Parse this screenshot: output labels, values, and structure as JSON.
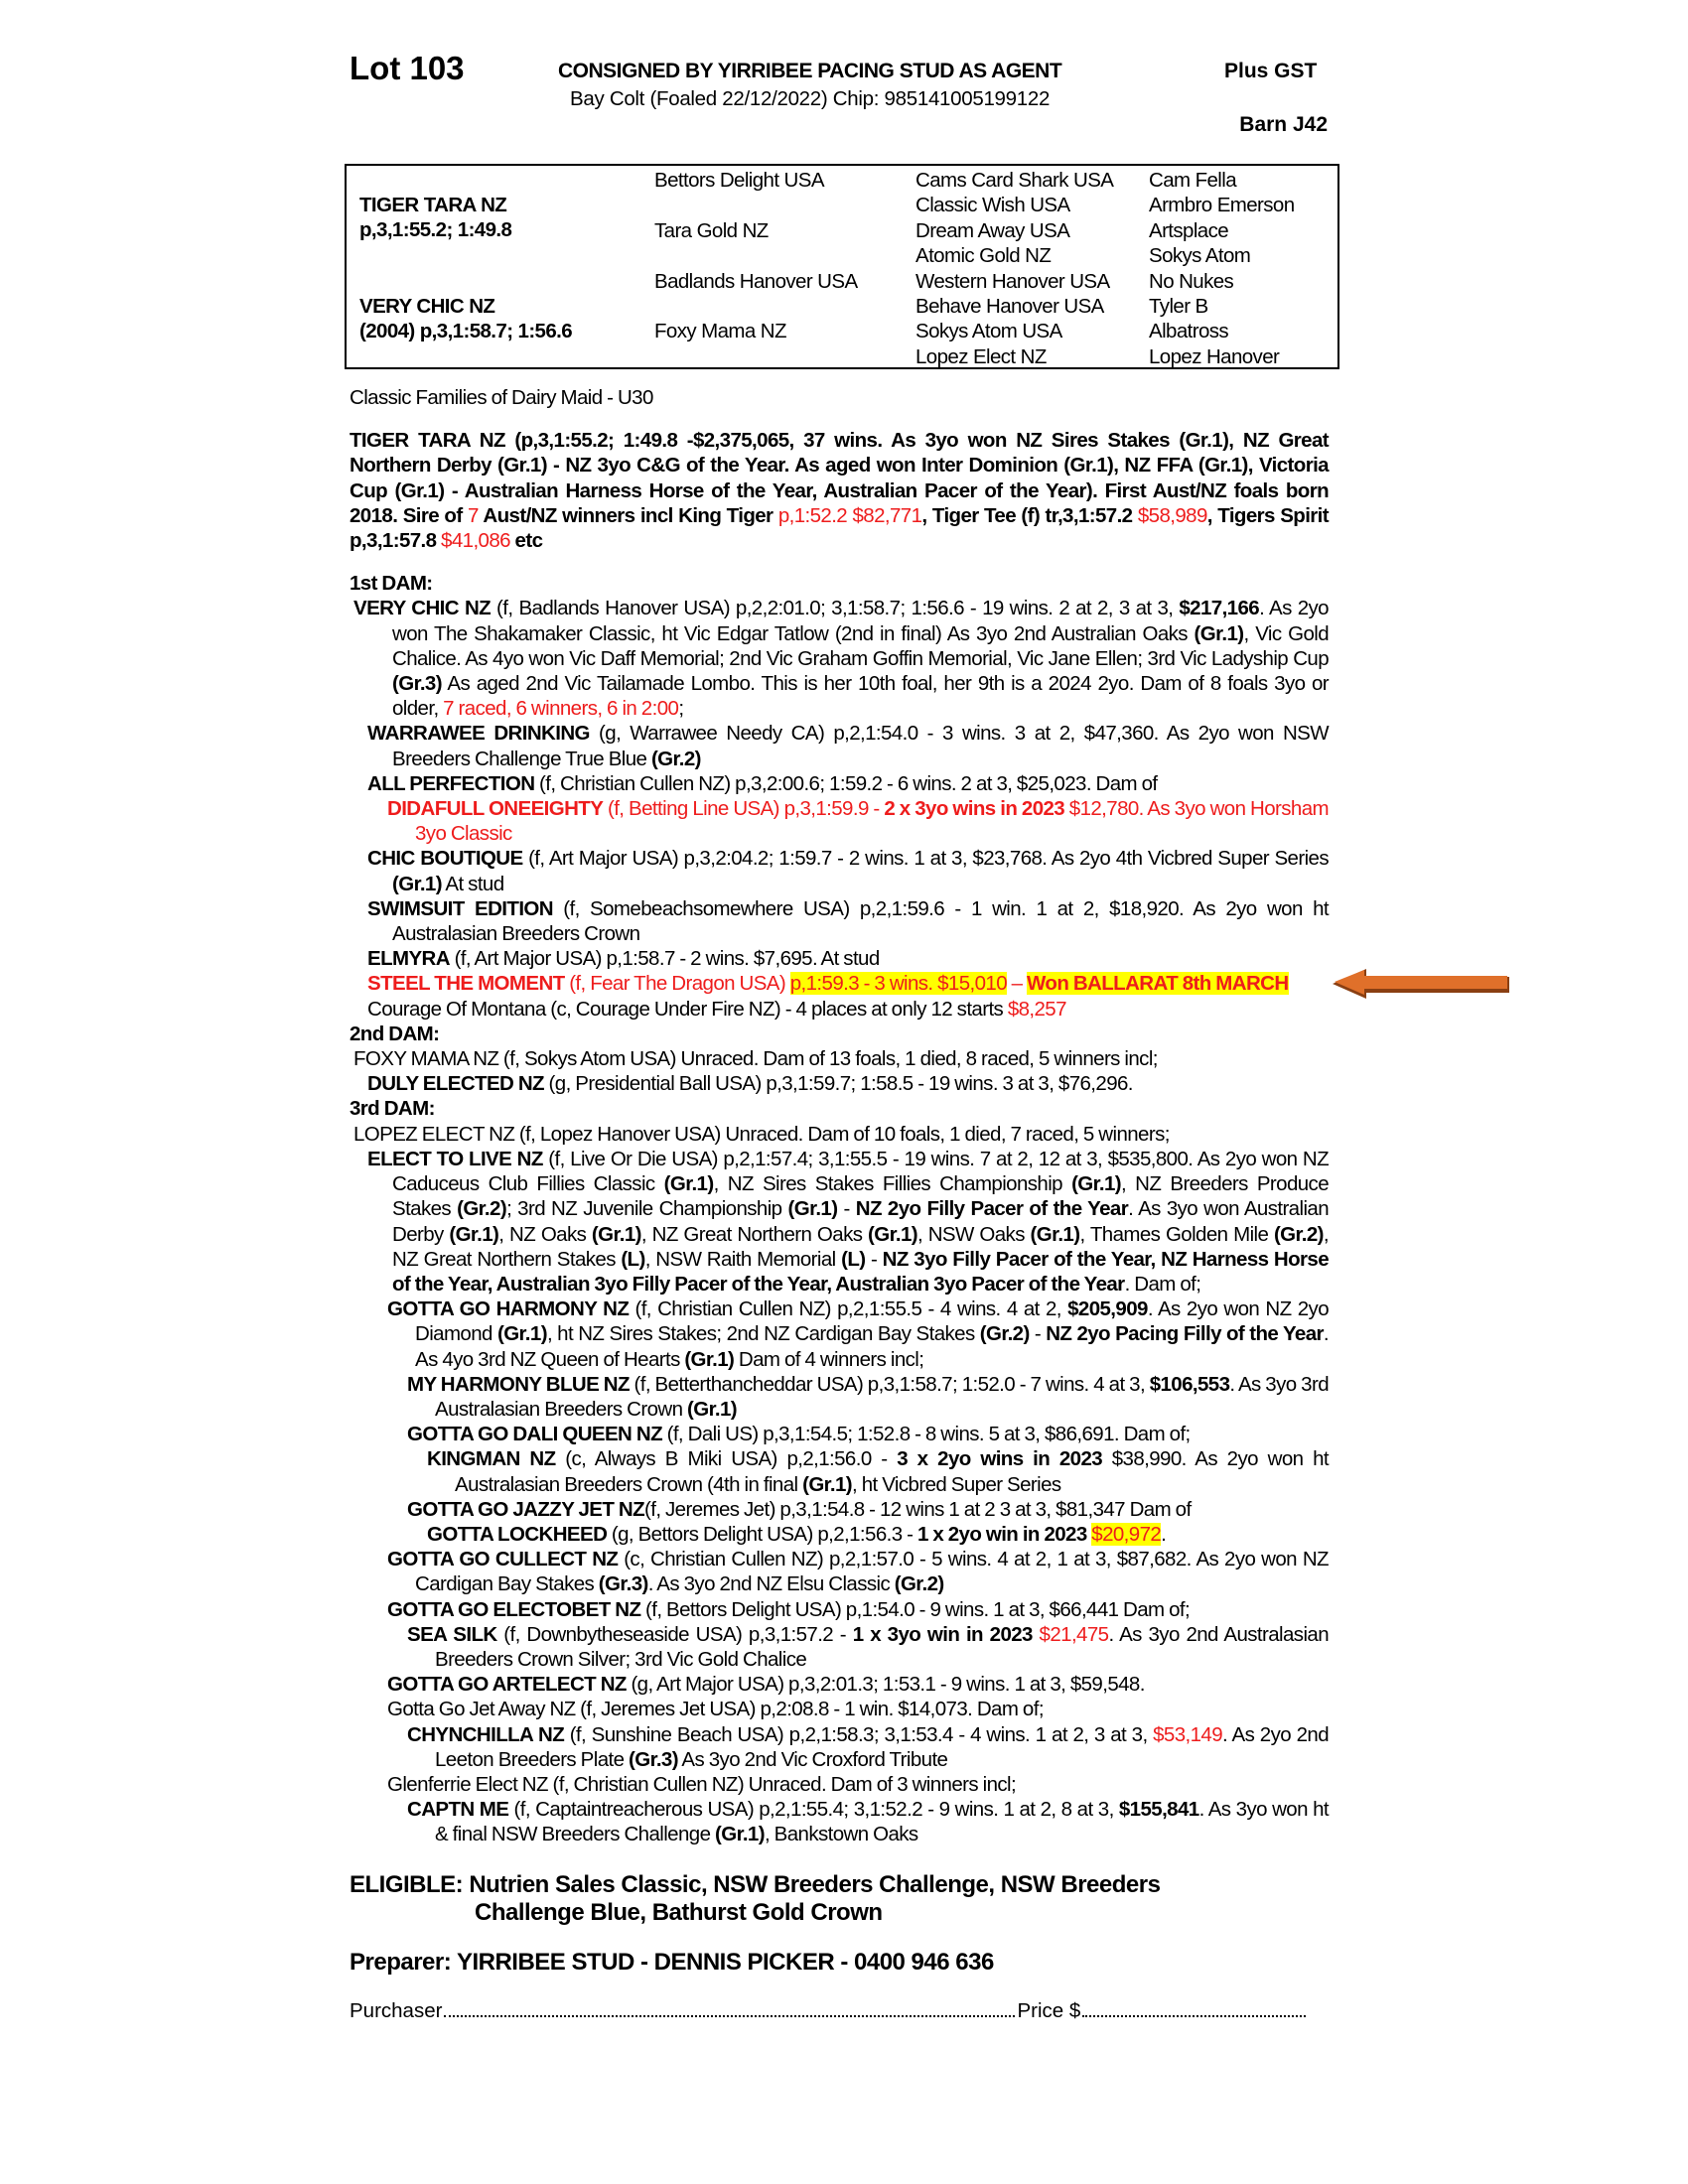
{
  "header": {
    "lot": "Lot 103",
    "consigned": "CONSIGNED BY YIRRIBEE PACING STUD AS AGENT",
    "subline": "Bay Colt (Foaled  22/12/2022) Chip: 985141005199122",
    "gst": "Plus GST",
    "barn": "Barn J42"
  },
  "pedigree": {
    "sire_name": "TIGER TARA NZ",
    "sire_record": "p,3,1:55.2; 1:49.8",
    "dam_name": "VERY CHIC NZ",
    "dam_record": "(2004) p,3,1:58.7; 1:56.6",
    "gen2": [
      "Bettors Delight USA",
      "Tara Gold NZ",
      "Badlands Hanover USA",
      "Foxy Mama NZ"
    ],
    "gen3": [
      "Cams Card Shark USA",
      "Classic Wish USA",
      "Dream Away USA",
      "Atomic Gold NZ",
      "Western Hanover USA",
      "Behave Hanover USA",
      "Sokys Atom USA",
      "Lopez Elect NZ"
    ],
    "gen4": [
      "Cam Fella",
      "Armbro Emerson",
      "Artsplace",
      "Sokys Atom",
      "No Nukes",
      "Tyler B",
      "Albatross",
      "Lopez Hanover"
    ]
  },
  "family": "Classic Families of Dairy Maid - U30",
  "sire_para": [
    [
      "b",
      "TIGER TARA NZ (p,3,1:55.2; 1:49.8 -$2,375,065, 37 wins. As 3yo won NZ Sires Stakes (Gr.1), NZ Great Northern Derby (Gr.1) - NZ 3yo C&G of the Year. As aged won Inter Dominion (Gr.1), NZ FFA (Gr.1), Victoria Cup (Gr.1) - Australian Harness Horse of the Year, Australian Pacer of the Year). First Aust/NZ foals born 2018. Sire of "
    ],
    [
      "r",
      "7"
    ],
    [
      "b",
      " Aust/NZ winners incl King Tiger "
    ],
    [
      "r",
      "p,1:52.2 $82,771"
    ],
    [
      "b",
      ", Tiger Tee (f) tr,3,1:57.2 "
    ],
    [
      "r",
      "$58,989"
    ],
    [
      "b",
      ", Tigers Spirit p,3,1:57.8 "
    ],
    [
      "r",
      "$41,086"
    ],
    [
      "b",
      " etc"
    ]
  ],
  "sections": [
    {
      "heading": "1st DAM:",
      "entries": [
        {
          "level": 0,
          "segs": [
            [
              "b",
              "VERY CHIC NZ"
            ],
            [
              "n",
              " (f, Badlands Hanover USA) p,2,2:01.0; 3,1:58.7; 1:56.6 - 19 wins. 2 at 2, 3 at 3, "
            ],
            [
              "b",
              "$217,166"
            ],
            [
              "n",
              ". As 2yo won The Shakamaker Classic, ht Vic Edgar Tatlow (2nd in final) As 3yo 2nd Australian Oaks "
            ],
            [
              "b",
              "(Gr.1)"
            ],
            [
              "n",
              ", Vic Gold Chalice. As 4yo won Vic Daff Memorial; 2nd Vic Graham Goffin Memorial, Vic Jane Ellen; 3rd Vic Ladyship Cup "
            ],
            [
              "b",
              "(Gr.3)"
            ],
            [
              "n",
              " As aged 2nd Vic Tailamade Lombo. This is her 10th foal, her 9th is a 2024 2yo. Dam of 8 foals 3yo or older, "
            ],
            [
              "r",
              "7 raced, 6 winners, 6 in 2:00"
            ],
            [
              "n",
              ";"
            ]
          ]
        },
        {
          "level": 1,
          "segs": [
            [
              "b",
              "WARRAWEE DRINKING"
            ],
            [
              "n",
              " (g, Warrawee Needy CA) p,2,1:54.0 - 3 wins. 3 at 2, $47,360. As 2yo won NSW Breeders Challenge True Blue "
            ],
            [
              "b",
              "(Gr.2)"
            ]
          ]
        },
        {
          "level": 1,
          "segs": [
            [
              "b",
              "ALL PERFECTION"
            ],
            [
              "n",
              " (f, Christian Cullen NZ) p,3,2:00.6; 1:59.2 - 6 wins. 2 at 3, $25,023. Dam of"
            ]
          ]
        },
        {
          "level": 2,
          "segs": [
            [
              "rb",
              "DIDAFULL ONEEIGHTY"
            ],
            [
              "r",
              " (f, Betting Line USA) p,3,1:59.9 - "
            ],
            [
              "rb",
              "2 x 3yo wins in 2023"
            ],
            [
              "r",
              " $12,780. As 3yo won Horsham 3yo Classic"
            ]
          ]
        },
        {
          "level": 1,
          "segs": [
            [
              "b",
              "CHIC BOUTIQUE"
            ],
            [
              "n",
              " (f, Art Major USA) p,3,2:04.2; 1:59.7 - 2 wins. 1 at 3, $23,768. As 2yo 4th Vicbred Super Series "
            ],
            [
              "b",
              "(Gr.1)"
            ],
            [
              "n",
              " At stud"
            ]
          ]
        },
        {
          "level": 1,
          "segs": [
            [
              "b",
              "SWIMSUIT EDITION"
            ],
            [
              "n",
              " (f, Somebeachsomewhere USA) p,2,1:59.6 - 1 win. 1 at 2, $18,920. As 2yo won ht Australasian Breeders Crown"
            ]
          ]
        },
        {
          "level": 1,
          "segs": [
            [
              "b",
              "ELMYRA"
            ],
            [
              "n",
              " (f, Art Major USA) p,1:58.7 - 2 wins. $7,695. At stud"
            ]
          ]
        },
        {
          "level": 1,
          "segs": [
            [
              "rb",
              "STEEL THE MOMENT"
            ],
            [
              "r",
              " (f, Fear The Dragon USA) "
            ],
            [
              "y",
              "p,1:59.3 - 3 wins. $15,010"
            ],
            [
              "r",
              " – "
            ],
            [
              "yb",
              "Won BALLARAT 8th MARCH"
            ]
          ]
        },
        {
          "level": 1,
          "segs": [
            [
              "n",
              "Courage Of Montana (c, Courage Under Fire NZ) - 4 places at only 12 starts "
            ],
            [
              "r",
              "$8,257"
            ]
          ]
        }
      ]
    },
    {
      "heading": "2nd DAM:",
      "entries": [
        {
          "level": 0,
          "segs": [
            [
              "n",
              "FOXY MAMA NZ (f, Sokys Atom USA) Unraced. Dam of 13 foals, 1 died, 8 raced, 5 winners incl;"
            ]
          ]
        },
        {
          "level": 1,
          "segs": [
            [
              "b",
              "DULY ELECTED NZ"
            ],
            [
              "n",
              " (g, Presidential Ball USA) p,3,1:59.7; 1:58.5 - 19 wins. 3 at 3, $76,296."
            ]
          ]
        }
      ]
    },
    {
      "heading": "3rd DAM:",
      "entries": [
        {
          "level": 0,
          "segs": [
            [
              "n",
              "LOPEZ ELECT NZ (f, Lopez Hanover USA) Unraced. Dam of 10 foals, 1 died, 7 raced, 5 winners;"
            ]
          ]
        },
        {
          "level": 1,
          "segs": [
            [
              "b",
              "ELECT TO LIVE NZ"
            ],
            [
              "n",
              " (f, Live Or Die USA) p,2,1:57.4; 3,1:55.5 - 19 wins. 7 at 2, 12 at 3, $535,800. As 2yo won NZ Caduceus Club Fillies Classic "
            ],
            [
              "b",
              "(Gr.1)"
            ],
            [
              "n",
              ", NZ Sires Stakes Fillies Championship "
            ],
            [
              "b",
              "(Gr.1)"
            ],
            [
              "n",
              ", NZ Breeders Produce Stakes "
            ],
            [
              "b",
              "(Gr.2)"
            ],
            [
              "n",
              "; 3rd NZ Juvenile Championship "
            ],
            [
              "b",
              "(Gr.1)"
            ],
            [
              "n",
              " - "
            ],
            [
              "b",
              "NZ 2yo Filly Pacer of the Year"
            ],
            [
              "n",
              ". As 3yo won Australian Derby "
            ],
            [
              "b",
              "(Gr.1)"
            ],
            [
              "n",
              ", NZ Oaks "
            ],
            [
              "b",
              "(Gr.1)"
            ],
            [
              "n",
              ", NZ Great Northern Oaks "
            ],
            [
              "b",
              "(Gr.1)"
            ],
            [
              "n",
              ", NSW Oaks "
            ],
            [
              "b",
              "(Gr.1)"
            ],
            [
              "n",
              ", Thames Golden Mile "
            ],
            [
              "b",
              "(Gr.2)"
            ],
            [
              "n",
              ", NZ Great Northern Stakes "
            ],
            [
              "b",
              "(L)"
            ],
            [
              "n",
              ", NSW Raith Memorial "
            ],
            [
              "b",
              "(L)"
            ],
            [
              "n",
              " - "
            ],
            [
              "b",
              "NZ 3yo Filly Pacer of the Year, NZ Harness Horse of the Year, Australian 3yo Filly Pacer of the Year, Australian 3yo Pacer of the Year"
            ],
            [
              "n",
              ". Dam of;"
            ]
          ]
        },
        {
          "level": 2,
          "segs": [
            [
              "b",
              "GOTTA GO HARMONY NZ"
            ],
            [
              "n",
              " (f, Christian Cullen NZ) p,2,1:55.5 - 4 wins. 4 at 2, "
            ],
            [
              "b",
              "$205,909"
            ],
            [
              "n",
              ". As 2yo won NZ 2yo Diamond "
            ],
            [
              "b",
              "(Gr.1)"
            ],
            [
              "n",
              ", ht NZ Sires Stakes; 2nd NZ Cardigan Bay Stakes "
            ],
            [
              "b",
              "(Gr.2)"
            ],
            [
              "n",
              " - "
            ],
            [
              "b",
              "NZ 2yo Pacing Filly of the Year"
            ],
            [
              "n",
              ". As 4yo 3rd NZ Queen of Hearts "
            ],
            [
              "b",
              "(Gr.1)"
            ],
            [
              "n",
              " Dam of 4 winners incl;"
            ]
          ]
        },
        {
          "level": 3,
          "segs": [
            [
              "b",
              "MY HARMONY BLUE NZ"
            ],
            [
              "n",
              " (f, Betterthancheddar USA) p,3,1:58.7; 1:52.0 - 7 wins. 4 at 3, "
            ],
            [
              "b",
              "$106,553"
            ],
            [
              "n",
              ". As 3yo 3rd Australasian Breeders Crown "
            ],
            [
              "b",
              "(Gr.1)"
            ]
          ]
        },
        {
          "level": 3,
          "segs": [
            [
              "b",
              "GOTTA GO DALI QUEEN NZ"
            ],
            [
              "n",
              " (f, Dali US) p,3,1:54.5; 1:52.8 - 8 wins. 5 at 3, $86,691. Dam of;"
            ]
          ]
        },
        {
          "level": 4,
          "segs": [
            [
              "b",
              "KINGMAN NZ"
            ],
            [
              "n",
              " (c, Always B Miki USA) p,2,1:56.0 - "
            ],
            [
              "b",
              "3 x 2yo wins in 2023"
            ],
            [
              "n",
              " $38,990. As 2yo won ht Australasian Breeders Crown (4th in final "
            ],
            [
              "b",
              "(Gr.1)"
            ],
            [
              "n",
              ", ht Vicbred Super Series"
            ]
          ]
        },
        {
          "level": 3,
          "segs": [
            [
              "b",
              "GOTTA GO JAZZY JET NZ"
            ],
            [
              "n",
              "(f, Jeremes Jet) p,3,1:54.8 - 12 wins 1 at 2 3 at 3, $81,347 Dam of"
            ]
          ]
        },
        {
          "level": 4,
          "segs": [
            [
              "b",
              "GOTTA LOCKHEED"
            ],
            [
              "n",
              " (g, Bettors Delight USA) p,2,1:56.3 - "
            ],
            [
              "b",
              "1 x 2yo win in 2023"
            ],
            [
              "n",
              "  "
            ],
            [
              "y",
              "$20,972"
            ],
            [
              "n",
              "."
            ]
          ]
        },
        {
          "level": 2,
          "segs": [
            [
              "b",
              "GOTTA GO CULLECT NZ"
            ],
            [
              "n",
              " (c, Christian Cullen NZ) p,2,1:57.0 - 5 wins. 4 at 2, 1 at 3, $87,682. As 2yo won NZ Cardigan Bay Stakes "
            ],
            [
              "b",
              "(Gr.3)"
            ],
            [
              "n",
              ". As 3yo 2nd NZ Elsu Classic "
            ],
            [
              "b",
              "(Gr.2)"
            ]
          ]
        },
        {
          "level": 2,
          "segs": [
            [
              "b",
              "GOTTA GO ELECTOBET NZ"
            ],
            [
              "n",
              " (f, Bettors Delight USA) p,1:54.0 - 9 wins. 1 at 3, $66,441 Dam of;"
            ]
          ]
        },
        {
          "level": 3,
          "segs": [
            [
              "b",
              "SEA SILK"
            ],
            [
              "n",
              " (f, Downbytheseaside USA) p,3,1:57.2 - "
            ],
            [
              "b",
              "1 x 3yo win in 2023"
            ],
            [
              "r",
              " $21,475"
            ],
            [
              "n",
              ". As 3yo 2nd Australasian Breeders Crown Silver; 3rd Vic Gold Chalice"
            ]
          ]
        },
        {
          "level": 2,
          "segs": [
            [
              "b",
              "GOTTA GO ARTELECT NZ"
            ],
            [
              "n",
              " (g, Art Major USA) p,3,2:01.3; 1:53.1 - 9 wins. 1 at 3, $59,548."
            ]
          ]
        },
        {
          "level": 2,
          "segs": [
            [
              "n",
              "Gotta Go Jet Away NZ (f, Jeremes Jet USA) p,2:08.8 - 1 win. $14,073. Dam of;"
            ]
          ]
        },
        {
          "level": 3,
          "segs": [
            [
              "b",
              "CHYNCHILLA NZ"
            ],
            [
              "n",
              " (f, Sunshine Beach USA) p,2,1:58.3; 3,1:53.4 - 4 wins. 1 at 2, 3 at 3, "
            ],
            [
              "r",
              "$53,149"
            ],
            [
              "n",
              ". As 2yo 2nd Leeton Breeders Plate "
            ],
            [
              "b",
              "(Gr.3)"
            ],
            [
              "n",
              " As 3yo 2nd Vic Croxford Tribute"
            ]
          ]
        },
        {
          "level": 2,
          "segs": [
            [
              "n",
              "Glenferrie Elect NZ (f, Christian Cullen NZ) Unraced. Dam of 3 winners incl;"
            ]
          ]
        },
        {
          "level": 3,
          "segs": [
            [
              "b",
              "CAPTN ME"
            ],
            [
              "n",
              " (f, Captaintreacherous USA) p,2,1:55.4; 3,1:52.2 - 9 wins. 1 at 2, 8 at 3, "
            ],
            [
              "b",
              "$155,841"
            ],
            [
              "n",
              ". As 3yo won ht & final NSW Breeders Challenge "
            ],
            [
              "b",
              "(Gr.1)"
            ],
            [
              "n",
              ", Bankstown Oaks"
            ]
          ]
        }
      ]
    }
  ],
  "eligible": {
    "line1": "ELIGIBLE: Nutrien Sales Classic, NSW Breeders Challenge, NSW Breeders",
    "line2": "Challenge Blue, Bathurst Gold Crown"
  },
  "preparer": "Preparer: YIRRIBEE STUD - DENNIS PICKER - 0400 946 636",
  "footer": {
    "purchaser_label": "Purchaser",
    "price_label": "Price $"
  },
  "colors": {
    "red": "#ee1c1c",
    "highlight": "#ffff00",
    "arrow": "#e0702a"
  },
  "icons": {
    "pointer": "arrow-left-icon"
  }
}
